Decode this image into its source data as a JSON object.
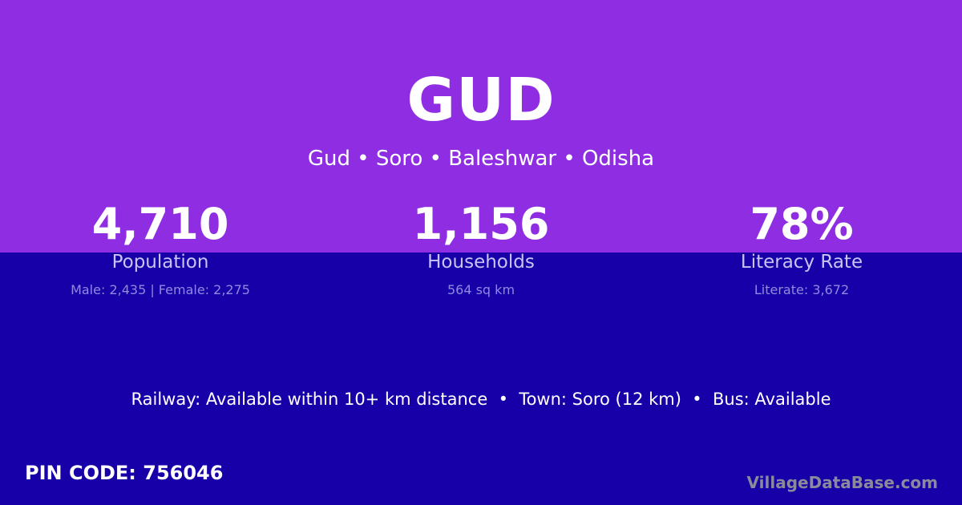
{
  "village": {
    "name": "GUD",
    "breadcrumb": "Gud • Soro • Baleshwar • Odisha"
  },
  "stats": [
    {
      "value": "4,710",
      "label": "Population",
      "detail": "Male: 2,435 | Female: 2,275"
    },
    {
      "value": "1,156",
      "label": "Households",
      "detail": "564 sq km"
    },
    {
      "value": "78%",
      "label": "Literacy Rate",
      "detail": "Literate: 3,672"
    }
  ],
  "connectivity": "Railway: Available within 10+ km distance  •  Town: Soro (12 km)  •  Bus: Available",
  "pin_code": "PIN CODE: 756046",
  "brand": "VillageDataBase.com",
  "colors": {
    "top_band": "#8e2de2",
    "background": "#1800a8"
  }
}
